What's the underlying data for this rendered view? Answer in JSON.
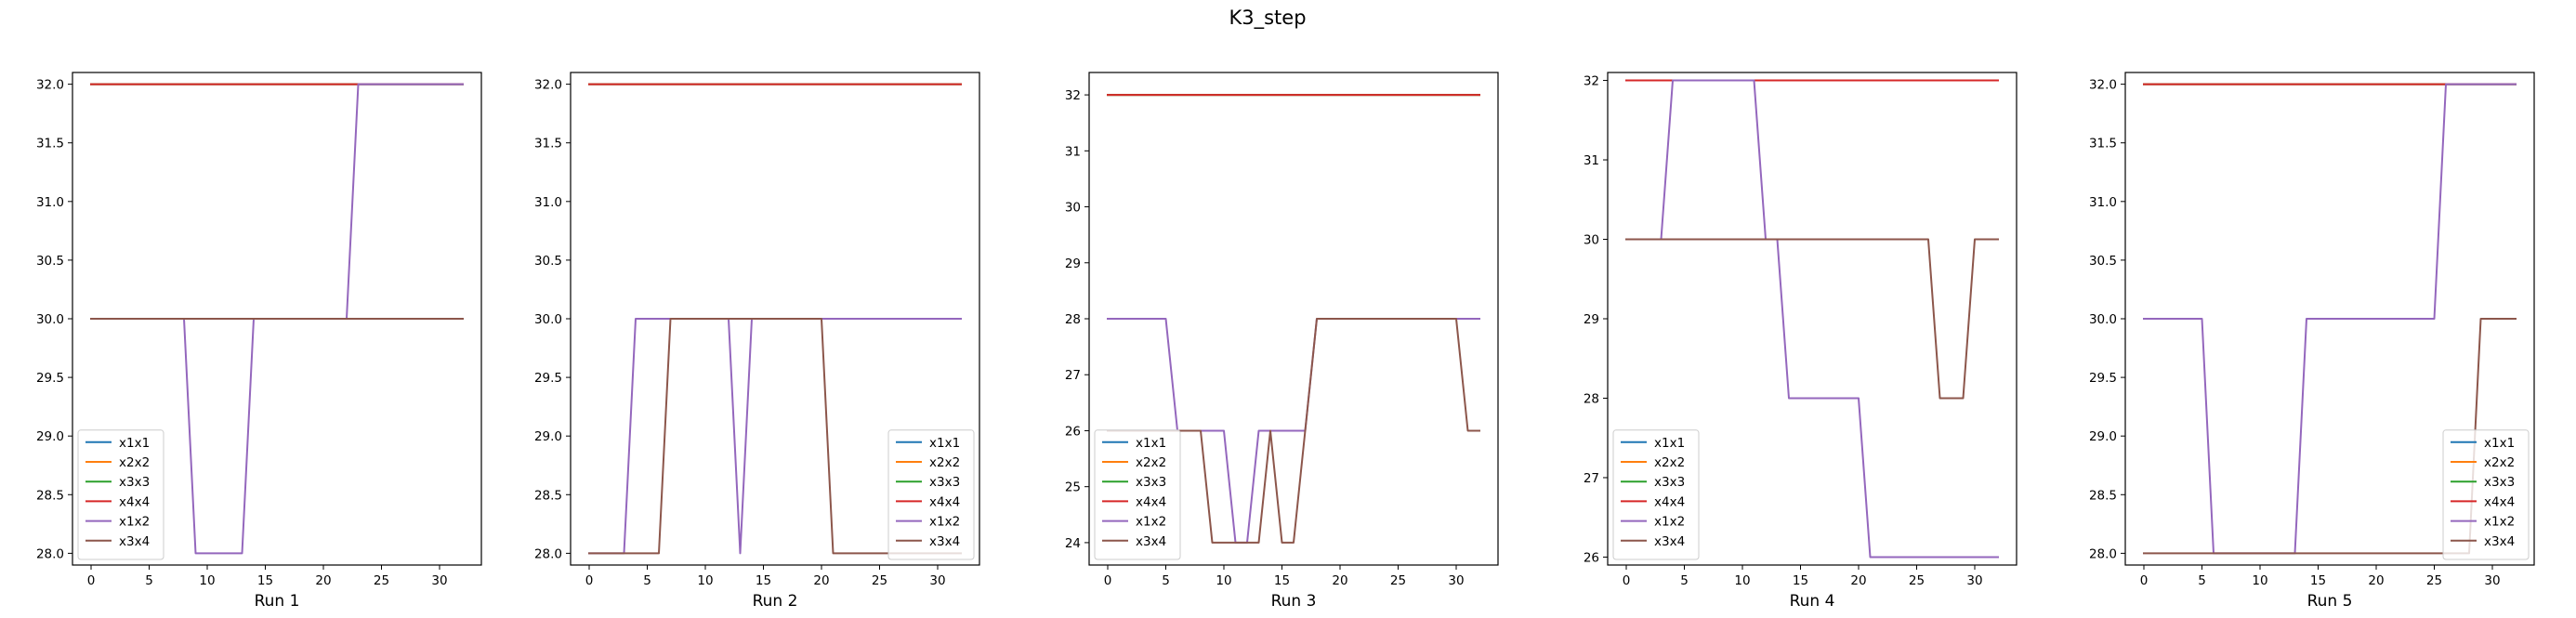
{
  "figure": {
    "title": "K3_step"
  },
  "chart_data": [
    {
      "type": "line",
      "xlabel": "Run 1",
      "xlim": [
        -1.6,
        33.6
      ],
      "ylim": [
        27.9,
        32.1
      ],
      "xticks": [
        0,
        5,
        10,
        15,
        20,
        25,
        30
      ],
      "yticks": [
        28.0,
        28.5,
        29.0,
        29.5,
        30.0,
        30.5,
        31.0,
        31.5,
        32.0
      ],
      "ytick_decimals": 1,
      "legend_loc": "lower-left",
      "series": [
        {
          "name": "x1x1",
          "color": "#1f77b4",
          "points": [
            [
              0,
              32
            ],
            [
              32,
              32
            ]
          ]
        },
        {
          "name": "x2x2",
          "color": "#ff7f0e",
          "points": [
            [
              0,
              32
            ],
            [
              32,
              32
            ]
          ]
        },
        {
          "name": "x3x3",
          "color": "#2ca02c",
          "points": [
            [
              0,
              32
            ],
            [
              32,
              32
            ]
          ]
        },
        {
          "name": "x4x4",
          "color": "#d62728",
          "points": [
            [
              0,
              32
            ],
            [
              32,
              32
            ]
          ]
        },
        {
          "name": "x1x2",
          "color": "#9467bd",
          "points": [
            [
              0,
              30
            ],
            [
              8,
              30
            ],
            [
              9,
              28
            ],
            [
              13,
              28
            ],
            [
              14,
              30
            ],
            [
              22,
              30
            ],
            [
              23,
              32
            ],
            [
              32,
              32
            ]
          ]
        },
        {
          "name": "x3x4",
          "color": "#8c564b",
          "points": [
            [
              0,
              30
            ],
            [
              32,
              30
            ]
          ]
        }
      ]
    },
    {
      "type": "line",
      "xlabel": "Run 2",
      "xlim": [
        -1.6,
        33.6
      ],
      "ylim": [
        27.9,
        32.1
      ],
      "xticks": [
        0,
        5,
        10,
        15,
        20,
        25,
        30
      ],
      "yticks": [
        28.0,
        28.5,
        29.0,
        29.5,
        30.0,
        30.5,
        31.0,
        31.5,
        32.0
      ],
      "ytick_decimals": 1,
      "legend_loc": "lower-right",
      "series": [
        {
          "name": "x1x1",
          "color": "#1f77b4",
          "points": [
            [
              0,
              32
            ],
            [
              32,
              32
            ]
          ]
        },
        {
          "name": "x2x2",
          "color": "#ff7f0e",
          "points": [
            [
              0,
              32
            ],
            [
              32,
              32
            ]
          ]
        },
        {
          "name": "x3x3",
          "color": "#2ca02c",
          "points": [
            [
              0,
              32
            ],
            [
              32,
              32
            ]
          ]
        },
        {
          "name": "x4x4",
          "color": "#d62728",
          "points": [
            [
              0,
              32
            ],
            [
              32,
              32
            ]
          ]
        },
        {
          "name": "x1x2",
          "color": "#9467bd",
          "points": [
            [
              0,
              28
            ],
            [
              3,
              28
            ],
            [
              4,
              30
            ],
            [
              12,
              30
            ],
            [
              13,
              28
            ],
            [
              14,
              30
            ],
            [
              32,
              30
            ]
          ]
        },
        {
          "name": "x3x4",
          "color": "#8c564b",
          "points": [
            [
              0,
              28
            ],
            [
              6,
              28
            ],
            [
              7,
              30
            ],
            [
              20,
              30
            ],
            [
              21,
              28
            ],
            [
              32,
              28
            ]
          ]
        }
      ]
    },
    {
      "type": "line",
      "xlabel": "Run 3",
      "xlim": [
        -1.6,
        33.6
      ],
      "ylim": [
        23.6,
        32.4
      ],
      "xticks": [
        0,
        5,
        10,
        15,
        20,
        25,
        30
      ],
      "yticks": [
        24,
        25,
        26,
        27,
        28,
        29,
        30,
        31,
        32
      ],
      "ytick_decimals": 0,
      "legend_loc": "lower-left",
      "series": [
        {
          "name": "x1x1",
          "color": "#1f77b4",
          "points": [
            [
              0,
              32
            ],
            [
              32,
              32
            ]
          ]
        },
        {
          "name": "x2x2",
          "color": "#ff7f0e",
          "points": [
            [
              0,
              32
            ],
            [
              32,
              32
            ]
          ]
        },
        {
          "name": "x3x3",
          "color": "#2ca02c",
          "points": [
            [
              0,
              32
            ],
            [
              32,
              32
            ]
          ]
        },
        {
          "name": "x4x4",
          "color": "#d62728",
          "points": [
            [
              0,
              32
            ],
            [
              32,
              32
            ]
          ]
        },
        {
          "name": "x1x2",
          "color": "#9467bd",
          "points": [
            [
              0,
              28
            ],
            [
              5,
              28
            ],
            [
              6,
              26
            ],
            [
              10,
              26
            ],
            [
              11,
              24
            ],
            [
              12,
              24
            ],
            [
              13,
              26
            ],
            [
              17,
              26
            ],
            [
              18,
              28
            ],
            [
              32,
              28
            ]
          ]
        },
        {
          "name": "x3x4",
          "color": "#8c564b",
          "points": [
            [
              0,
              26
            ],
            [
              8,
              26
            ],
            [
              9,
              24
            ],
            [
              13,
              24
            ],
            [
              14,
              26
            ],
            [
              15,
              24
            ],
            [
              16,
              24
            ],
            [
              18,
              28
            ],
            [
              30,
              28
            ],
            [
              31,
              26
            ],
            [
              32,
              26
            ]
          ]
        }
      ]
    },
    {
      "type": "line",
      "xlabel": "Run 4",
      "xlim": [
        -1.6,
        33.6
      ],
      "ylim": [
        25.9,
        32.1
      ],
      "xticks": [
        0,
        5,
        10,
        15,
        20,
        25,
        30
      ],
      "yticks": [
        26,
        27,
        28,
        29,
        30,
        31,
        32
      ],
      "ytick_decimals": 0,
      "legend_loc": "lower-left",
      "series": [
        {
          "name": "x1x1",
          "color": "#1f77b4",
          "points": [
            [
              0,
              32
            ],
            [
              32,
              32
            ]
          ]
        },
        {
          "name": "x2x2",
          "color": "#ff7f0e",
          "points": [
            [
              0,
              32
            ],
            [
              32,
              32
            ]
          ]
        },
        {
          "name": "x3x3",
          "color": "#2ca02c",
          "points": [
            [
              0,
              32
            ],
            [
              32,
              32
            ]
          ]
        },
        {
          "name": "x4x4",
          "color": "#d62728",
          "points": [
            [
              0,
              32
            ],
            [
              32,
              32
            ]
          ]
        },
        {
          "name": "x1x2",
          "color": "#9467bd",
          "points": [
            [
              0,
              30
            ],
            [
              3,
              30
            ],
            [
              4,
              32
            ],
            [
              11,
              32
            ],
            [
              12,
              30
            ],
            [
              13,
              30
            ],
            [
              14,
              28
            ],
            [
              20,
              28
            ],
            [
              21,
              26
            ],
            [
              32,
              26
            ]
          ]
        },
        {
          "name": "x3x4",
          "color": "#8c564b",
          "points": [
            [
              0,
              30
            ],
            [
              26,
              30
            ],
            [
              27,
              28
            ],
            [
              29,
              28
            ],
            [
              30,
              30
            ],
            [
              32,
              30
            ]
          ]
        }
      ]
    },
    {
      "type": "line",
      "xlabel": "Run 5",
      "xlim": [
        -1.6,
        33.6
      ],
      "ylim": [
        27.9,
        32.1
      ],
      "xticks": [
        0,
        5,
        10,
        15,
        20,
        25,
        30
      ],
      "yticks": [
        28.0,
        28.5,
        29.0,
        29.5,
        30.0,
        30.5,
        31.0,
        31.5,
        32.0
      ],
      "ytick_decimals": 1,
      "legend_loc": "lower-right",
      "series": [
        {
          "name": "x1x1",
          "color": "#1f77b4",
          "points": [
            [
              0,
              32
            ],
            [
              32,
              32
            ]
          ]
        },
        {
          "name": "x2x2",
          "color": "#ff7f0e",
          "points": [
            [
              0,
              32
            ],
            [
              32,
              32
            ]
          ]
        },
        {
          "name": "x3x3",
          "color": "#2ca02c",
          "points": [
            [
              0,
              32
            ],
            [
              32,
              32
            ]
          ]
        },
        {
          "name": "x4x4",
          "color": "#d62728",
          "points": [
            [
              0,
              32
            ],
            [
              32,
              32
            ]
          ]
        },
        {
          "name": "x1x2",
          "color": "#9467bd",
          "points": [
            [
              0,
              30
            ],
            [
              5,
              30
            ],
            [
              6,
              28
            ],
            [
              13,
              28
            ],
            [
              14,
              30
            ],
            [
              25,
              30
            ],
            [
              26,
              32
            ],
            [
              32,
              32
            ]
          ]
        },
        {
          "name": "x3x4",
          "color": "#8c564b",
          "points": [
            [
              0,
              28
            ],
            [
              28,
              28
            ],
            [
              29,
              30
            ],
            [
              32,
              30
            ]
          ]
        }
      ]
    }
  ]
}
